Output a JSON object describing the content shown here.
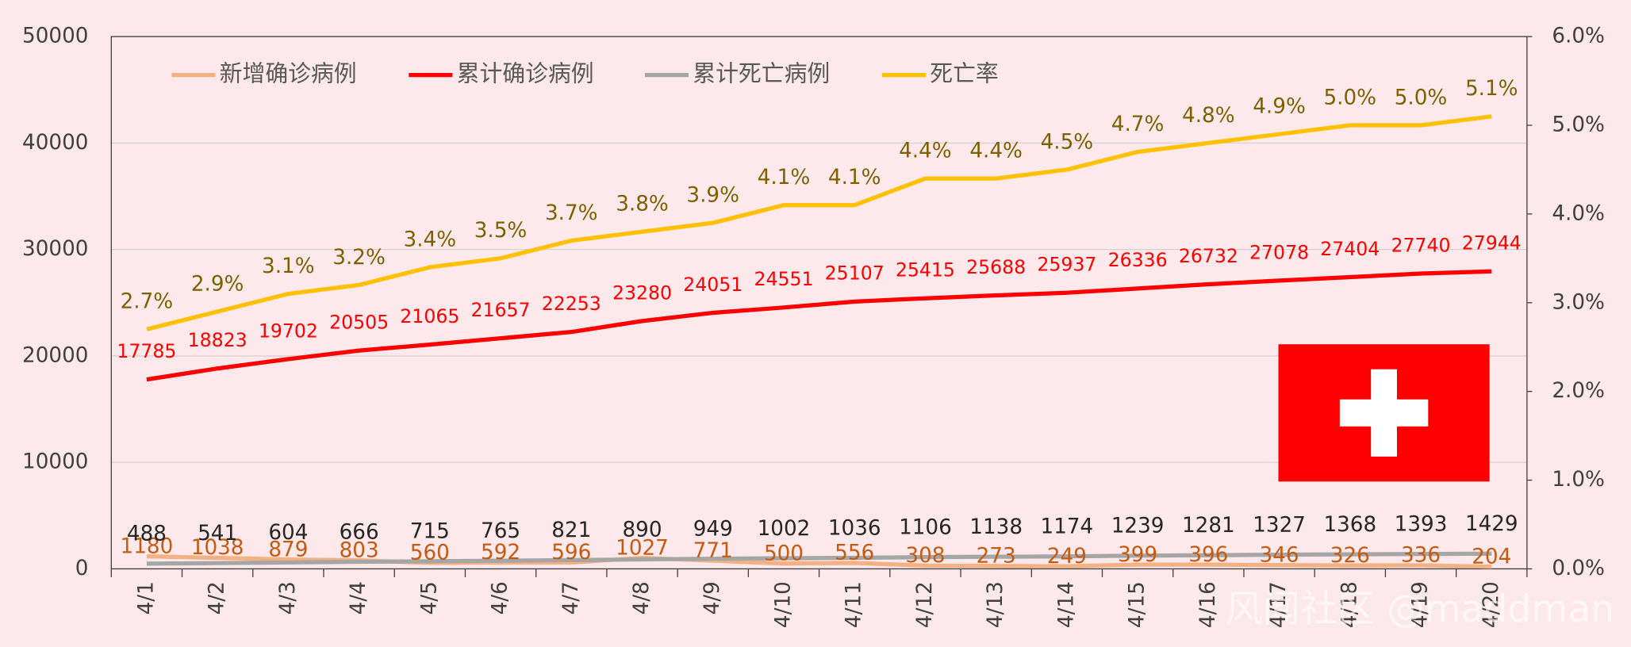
{
  "chart_data": {
    "type": "line",
    "categories": [
      "4/1",
      "4/2",
      "4/3",
      "4/4",
      "4/5",
      "4/6",
      "4/7",
      "4/8",
      "4/9",
      "4/10",
      "4/11",
      "4/12",
      "4/13",
      "4/14",
      "4/15",
      "4/16",
      "4/17",
      "4/18",
      "4/19",
      "4/20"
    ],
    "series": [
      {
        "name": "新增确诊病例",
        "color": "#f4b183",
        "label_color": "#c55a11",
        "values": [
          1180,
          1038,
          879,
          803,
          560,
          592,
          596,
          1027,
          771,
          500,
          556,
          308,
          273,
          249,
          399,
          396,
          346,
          326,
          336,
          204
        ]
      },
      {
        "name": "累计确诊病例",
        "color": "#ff0000",
        "label_color": "#ff0000",
        "values": [
          17785,
          18823,
          19702,
          20505,
          21065,
          21657,
          22253,
          23280,
          24051,
          24551,
          25107,
          25415,
          25688,
          25937,
          26336,
          26732,
          27078,
          27404,
          27740,
          27944
        ]
      },
      {
        "name": "累计死亡病例",
        "color": "#a6a6a6",
        "label_color": "#262626",
        "values": [
          488,
          541,
          604,
          666,
          715,
          765,
          821,
          890,
          949,
          1002,
          1036,
          1106,
          1138,
          1174,
          1239,
          1281,
          1327,
          1368,
          1393,
          1429
        ]
      },
      {
        "name": "死亡率",
        "color": "#ffc000",
        "label_color": "#7f6000",
        "axis": "y2",
        "values": [
          2.7,
          2.9,
          3.1,
          3.2,
          3.4,
          3.5,
          3.7,
          3.8,
          3.9,
          4.1,
          4.1,
          4.4,
          4.4,
          4.5,
          4.7,
          4.8,
          4.9,
          5.0,
          5.0,
          5.1
        ],
        "value_labels": [
          "2.7%",
          "2.9%",
          "3.1%",
          "3.2%",
          "3.4%",
          "3.5%",
          "3.7%",
          "3.8%",
          "3.9%",
          "4.1%",
          "4.1%",
          "4.4%",
          "4.4%",
          "4.5%",
          "4.7%",
          "4.8%",
          "4.9%",
          "5.0%",
          "5.0%",
          "5.1%"
        ]
      }
    ],
    "ylim": [
      0,
      50000
    ],
    "yticks": [
      0,
      10000,
      20000,
      30000,
      40000,
      50000
    ],
    "y2lim": [
      0,
      6
    ],
    "y2ticks": [
      {
        "value": 0,
        "label": "0.0%"
      },
      {
        "value": 1,
        "label": "1.0%"
      },
      {
        "value": 2,
        "label": "2.0%"
      },
      {
        "value": 3,
        "label": "3.0%"
      },
      {
        "value": 4,
        "label": "4.0%"
      },
      {
        "value": 5,
        "label": "5.0%"
      },
      {
        "value": 6,
        "label": "6.0%"
      }
    ],
    "grid": true,
    "legend": "top-left",
    "watermark": "风闻社区 @maddman"
  }
}
